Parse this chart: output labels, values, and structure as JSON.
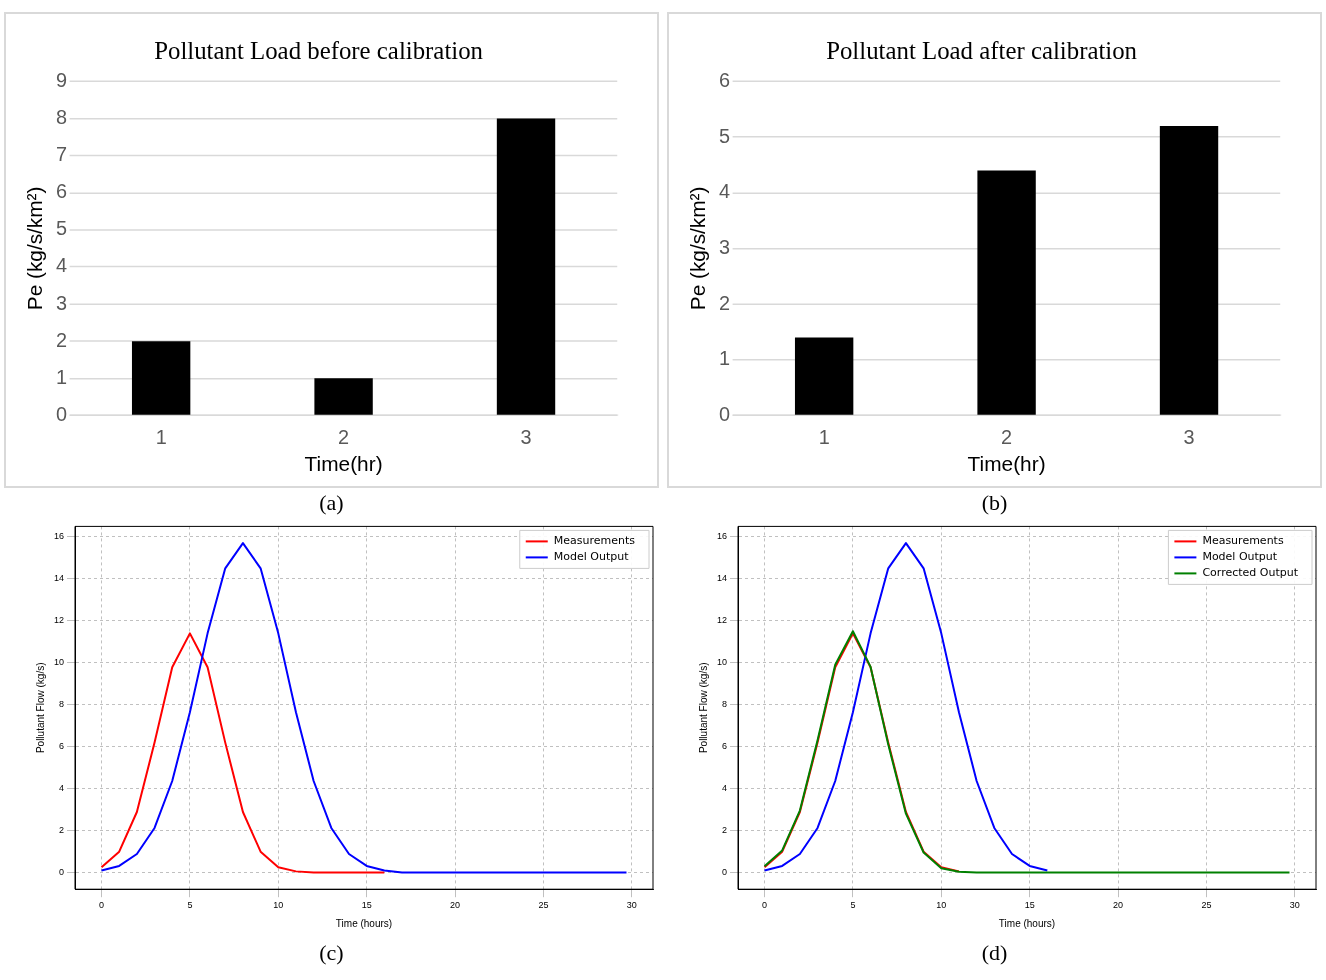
{
  "chart_data": [
    {
      "type": "bar",
      "title": "Pollutant Load before calibration",
      "xlabel": "Time(hr)",
      "ylabel": "Pe (kg/s/km²)",
      "categories": [
        "1",
        "2",
        "3"
      ],
      "values": [
        2,
        1,
        8
      ],
      "color": "#000000",
      "ylim": [
        0,
        9
      ],
      "yticks": [
        0,
        1,
        2,
        3,
        4,
        5,
        6,
        7,
        8,
        9
      ],
      "grid": "y",
      "annotations": [
        "(a)"
      ]
    },
    {
      "type": "bar",
      "title": "Pollutant Load after calibration",
      "xlabel": "Time(hr)",
      "ylabel": "Pe (kg/s/km²)",
      "categories": [
        "1",
        "2",
        "3"
      ],
      "values": [
        1.4,
        4.4,
        5.2
      ],
      "color": "#000000",
      "ylim": [
        0,
        6
      ],
      "yticks": [
        0,
        1,
        2,
        3,
        4,
        5,
        6
      ],
      "grid": "y",
      "annotations": [
        "(b)"
      ]
    },
    {
      "type": "line",
      "xlabel": "Time (hours)",
      "ylabel": "Pollutant Flow (kg/s)",
      "xlim": [
        -1.5,
        31.2
      ],
      "ylim": [
        -0.8,
        16.5
      ],
      "xticks": [
        0,
        5,
        10,
        15,
        20,
        25,
        30
      ],
      "yticks": [
        0,
        2,
        4,
        6,
        8,
        10,
        12,
        14,
        16
      ],
      "grid": true,
      "legend": "top right",
      "marker": "none",
      "line_style": "solid",
      "annotations": [
        "(c)"
      ],
      "series": [
        {
          "name": "Measurements",
          "color": "#ff0000",
          "x": [
            0,
            1,
            2,
            3,
            4,
            5,
            6,
            7,
            8,
            9,
            10,
            11,
            12,
            16
          ],
          "values": [
            0.25,
            0.99,
            2.88,
            6.19,
            9.78,
            11.4,
            9.78,
            6.19,
            2.88,
            0.99,
            0.25,
            0.05,
            0,
            0
          ]
        },
        {
          "name": "Model Output",
          "color": "#0000ff",
          "x": [
            0,
            1,
            2,
            3,
            4,
            5,
            6,
            7,
            8,
            9,
            10,
            11,
            12,
            13,
            14,
            15,
            16,
            17,
            20,
            25,
            29.7
          ],
          "values": [
            0.09,
            0.31,
            0.88,
            2.12,
            4.36,
            7.64,
            11.4,
            14.5,
            15.7,
            14.5,
            11.4,
            7.64,
            4.36,
            2.12,
            0.88,
            0.31,
            0.09,
            0,
            0,
            0,
            0
          ]
        }
      ]
    },
    {
      "type": "line",
      "xlabel": "Time (hours)",
      "ylabel": "Pollutant Flow (kg/s)",
      "xlim": [
        -1.5,
        31.2
      ],
      "ylim": [
        -0.8,
        16.5
      ],
      "xticks": [
        0,
        5,
        10,
        15,
        20,
        25,
        30
      ],
      "yticks": [
        0,
        2,
        4,
        6,
        8,
        10,
        12,
        14,
        16
      ],
      "grid": true,
      "legend": "top right",
      "marker": "none",
      "line_style": "solid",
      "annotations": [
        "(d)"
      ],
      "series": [
        {
          "name": "Measurements",
          "color": "#ff0000",
          "x": [
            0,
            1,
            2,
            3,
            4,
            5,
            6,
            7,
            8,
            9,
            10,
            11
          ],
          "values": [
            0.25,
            0.99,
            2.88,
            6.19,
            9.78,
            11.4,
            9.78,
            6.19,
            2.88,
            0.99,
            0.25,
            0.05
          ]
        },
        {
          "name": "Model Output",
          "color": "#0000ff",
          "x": [
            0,
            1,
            2,
            3,
            4,
            5,
            6,
            7,
            8,
            9,
            10,
            11,
            12,
            13,
            14,
            15,
            16
          ],
          "values": [
            0.09,
            0.31,
            0.88,
            2.12,
            4.36,
            7.64,
            11.4,
            14.5,
            15.7,
            14.5,
            11.4,
            7.64,
            4.36,
            2.12,
            0.88,
            0.31,
            0.09
          ]
        },
        {
          "name": "Corrected Output",
          "color": "#008000",
          "x": [
            0,
            1,
            2,
            3,
            4,
            5,
            6,
            7,
            8,
            9,
            10,
            11,
            12,
            15,
            20,
            25,
            29.7
          ],
          "values": [
            0.3,
            1.05,
            2.95,
            6.3,
            9.9,
            11.5,
            9.8,
            6.1,
            2.8,
            0.95,
            0.2,
            0.03,
            0,
            0,
            0,
            0,
            0
          ]
        }
      ]
    }
  ]
}
